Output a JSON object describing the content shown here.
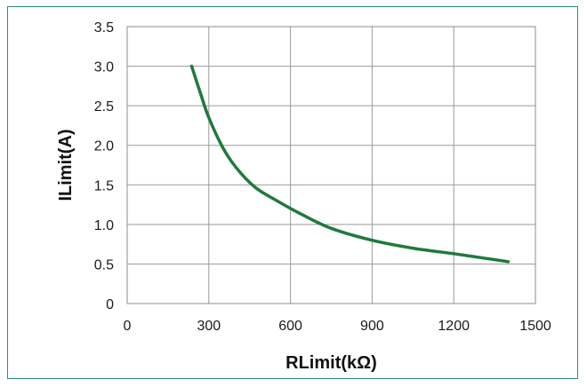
{
  "chart_data": {
    "type": "line",
    "title": "",
    "xlabel": "RLimit(kΩ)",
    "ylabel": "ILimit(A)",
    "xlim": [
      0,
      1500
    ],
    "ylim": [
      0,
      3.5
    ],
    "x_ticks": [
      0,
      300,
      600,
      900,
      1200,
      1500
    ],
    "x_tick_labels": [
      "0",
      "300",
      "600",
      "900",
      "1200",
      "1500"
    ],
    "y_ticks": [
      0,
      0.5,
      1.0,
      1.5,
      2.0,
      2.5,
      3.0,
      3.5
    ],
    "y_tick_labels": [
      "0",
      "0.5",
      "1.0",
      "1.5",
      "2.0",
      "2.5",
      "3.0",
      "3.5"
    ],
    "grid": true,
    "legend": "none",
    "series": [
      {
        "color": "#1e7a3c",
        "x": [
          237,
          270,
          300,
          350,
          400,
          470,
          550,
          640,
          750,
          900,
          1050,
          1200,
          1300,
          1400
        ],
        "y": [
          3.0,
          2.65,
          2.35,
          1.98,
          1.72,
          1.47,
          1.3,
          1.13,
          0.95,
          0.8,
          0.7,
          0.63,
          0.58,
          0.53
        ]
      }
    ]
  }
}
